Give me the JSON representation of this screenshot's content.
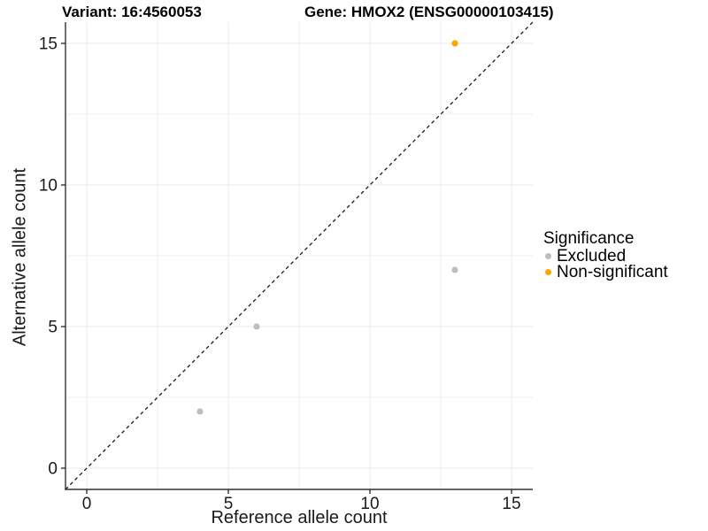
{
  "header": {
    "variant_title": "Variant: 16:4560053",
    "gene_title": "Gene: HMOX2 (ENSG00000103415)"
  },
  "legend": {
    "title": "Significance",
    "items": [
      {
        "label": "Excluded",
        "color": "#BDBDBD"
      },
      {
        "label": "Non-significant",
        "color": "#FFA500"
      }
    ]
  },
  "colors": {
    "background": "#ffffff",
    "grid_major": "#E8E8E8",
    "grid_minor": "#EFEFEF",
    "axis_line": "#333333",
    "tick_text": "#1a1a1a",
    "diagonal": "#1a1a1a",
    "excluded_point": "#BDBDBD",
    "nonsignificant_point": "#FFA500"
  },
  "chart_data": {
    "type": "scatter",
    "title": "Variant: 16:4560053   Gene: HMOX2 (ENSG00000103415)",
    "xlabel": "Reference allele count",
    "ylabel": "Alternative allele count",
    "xlim": [
      -0.75,
      15.75
    ],
    "ylim": [
      -0.75,
      15.75
    ],
    "x_ticks": [
      0,
      5,
      10,
      15
    ],
    "y_ticks": [
      0,
      5,
      10,
      15
    ],
    "x_minor_ticks": [
      2.5,
      7.5,
      12.5
    ],
    "y_minor_ticks": [
      2.5,
      7.5,
      12.5
    ],
    "grid": true,
    "legend_position": "right",
    "legend_title": "Significance",
    "diagonal_line": {
      "slope": 1,
      "intercept": 0,
      "style": "dashed"
    },
    "series": [
      {
        "name": "Excluded",
        "color": "#BDBDBD",
        "points": [
          [
            4,
            2
          ],
          [
            6,
            5
          ],
          [
            13,
            7
          ]
        ]
      },
      {
        "name": "Non-significant",
        "color": "#FFA500",
        "points": [
          [
            13,
            15
          ]
        ]
      }
    ]
  }
}
